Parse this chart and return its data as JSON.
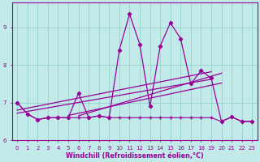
{
  "xlabel": "Windchill (Refroidissement éolien,°C)",
  "background_color": "#c2eae8",
  "grid_color": "#9dd4d1",
  "line_color": "#990099",
  "xlim": [
    -0.5,
    23.5
  ],
  "ylim": [
    6.0,
    9.65
  ],
  "yticks": [
    6,
    7,
    8,
    9
  ],
  "xticks": [
    0,
    1,
    2,
    3,
    4,
    5,
    6,
    7,
    8,
    9,
    10,
    11,
    12,
    13,
    14,
    15,
    16,
    17,
    18,
    19,
    20,
    21,
    22,
    23
  ],
  "series1": [
    7.0,
    6.7,
    6.55,
    6.6,
    6.6,
    6.6,
    7.25,
    6.6,
    6.65,
    6.6,
    8.4,
    9.35,
    8.55,
    6.9,
    8.5,
    9.12,
    8.7,
    7.5,
    7.85,
    7.65,
    6.5,
    6.62,
    6.5,
    6.5
  ],
  "trend_lines": [
    {
      "x0": 0,
      "y0": 6.9,
      "x1": 19,
      "y1": 7.6
    },
    {
      "x0": 0,
      "y0": 6.85,
      "x1": 19,
      "y1": 7.85
    },
    {
      "x0": 6,
      "y0": 6.67,
      "x1": 20,
      "y1": 7.78
    },
    {
      "x0": 6,
      "y0": 6.7,
      "x1": 20,
      "y1": 7.5
    }
  ],
  "flat_series": [
    7.0,
    6.7,
    6.55,
    6.6,
    6.6,
    6.6,
    6.6,
    6.6,
    6.65,
    6.6,
    6.6,
    6.6,
    6.6,
    6.6,
    6.6,
    6.6,
    6.6,
    6.6,
    6.6,
    6.6,
    6.5,
    6.62,
    6.5,
    6.5
  ]
}
